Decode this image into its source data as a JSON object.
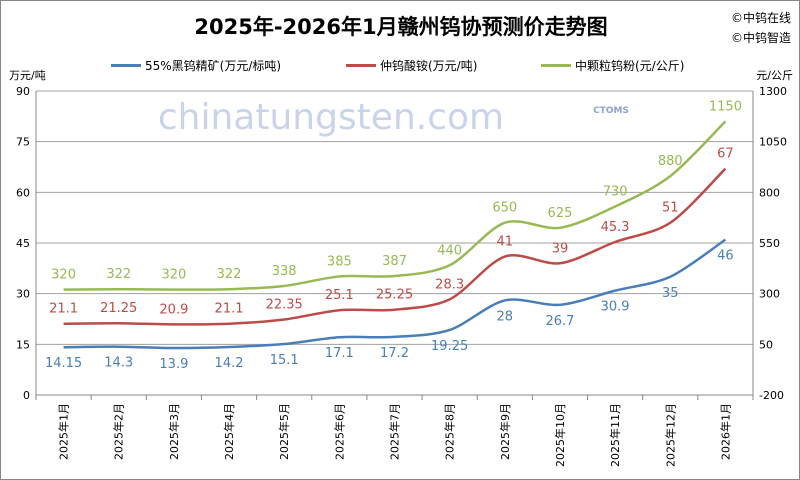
{
  "chart_data": {
    "type": "line",
    "title": "2025年-2026年1月赣州钨协预测价走势图",
    "copyrights": [
      "©中钨在线",
      "©中钨智造"
    ],
    "watermark": "chinatungsten.com",
    "watermark_logo": "CTOMS",
    "left_axis_unit": "万元/吨",
    "right_axis_unit": "元/公斤",
    "ylim_left": [
      0,
      90
    ],
    "yticks_left": [
      0,
      15,
      30,
      45,
      60,
      75,
      90
    ],
    "ylim_right": [
      -200,
      1300
    ],
    "yticks_right": [
      -200,
      50,
      300,
      550,
      800,
      1050,
      1300
    ],
    "grid": true,
    "legend_placement": "top",
    "categories": [
      "2025年1月",
      "2025年2月",
      "2025年3月",
      "2025年4月",
      "2025年5月",
      "2025年6月",
      "2025年7月",
      "2025年8月",
      "2025年9月",
      "2025年10月",
      "2025年11月",
      "2025年12月",
      "2026年1月"
    ],
    "series": [
      {
        "name": "55%黑钨精矿(万元/标吨)",
        "axis": "left",
        "color": "#4a7ebb",
        "labelPos": "below",
        "values": [
          14.15,
          14.3,
          13.9,
          14.2,
          15.1,
          17.1,
          17.2,
          19.25,
          28,
          26.7,
          30.9,
          35,
          46
        ],
        "labels": [
          "14.15",
          "14.3",
          "13.9",
          "14.2",
          "15.1",
          "17.1",
          "17.2",
          "19.25",
          "28",
          "26.7",
          "30.9",
          "35",
          "46"
        ]
      },
      {
        "name": "仲钨酸铵(万元/吨)",
        "axis": "left",
        "color": "#be4b48",
        "labelPos": "above",
        "values": [
          21.1,
          21.25,
          20.9,
          21.1,
          22.35,
          25.1,
          25.25,
          28.3,
          41,
          39,
          45.3,
          51,
          67
        ],
        "labels": [
          "21.1",
          "21.25",
          "20.9",
          "21.1",
          "22.35",
          "25.1",
          "25.25",
          "28.3",
          "41",
          "39",
          "45.3",
          "51",
          "67"
        ]
      },
      {
        "name": "中颗粒钨粉(元/公斤)",
        "axis": "right",
        "color": "#98b954",
        "labelPos": "above",
        "values": [
          320,
          322,
          320,
          322,
          338,
          385,
          387,
          440,
          650,
          625,
          730,
          880,
          1150
        ],
        "labels": [
          "320",
          "322",
          "320",
          "322",
          "338",
          "385",
          "387",
          "440",
          "650",
          "625",
          "730",
          "880",
          "1150"
        ]
      }
    ]
  }
}
